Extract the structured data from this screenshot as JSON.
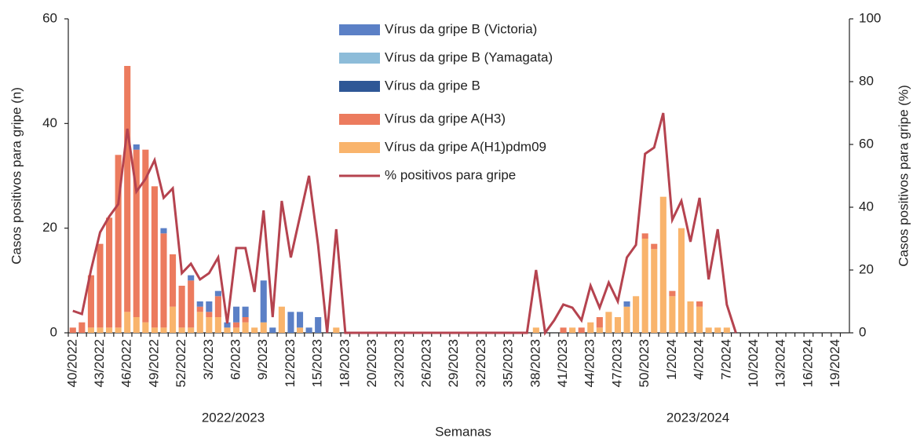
{
  "chart_data": {
    "type": "bar",
    "stacked": true,
    "y_label": "Casos positivos para gripe (n)",
    "y2_label": "Casos positivos para gripe (%)",
    "x_label": "Semanas",
    "annotations": [
      "2022/2023",
      "2023/2024"
    ],
    "legend": "top",
    "categories": [
      "40/2022",
      null,
      null,
      "43/2022",
      null,
      null,
      "46/2022",
      null,
      null,
      "49/2022",
      null,
      null,
      "52/2022",
      null,
      null,
      "3/2023",
      null,
      null,
      "6/2023",
      null,
      null,
      "9/2023",
      null,
      null,
      "12/2023",
      null,
      null,
      "15/2023",
      null,
      null,
      "18/2023",
      null,
      null,
      "20/2023",
      null,
      null,
      "23/2023",
      null,
      null,
      "26/2023",
      null,
      null,
      "29/2023",
      null,
      null,
      "32/2023",
      null,
      null,
      "35/2023",
      null,
      null,
      "38/2023",
      null,
      null,
      "41/2023",
      null,
      null,
      "44/2023",
      null,
      null,
      "47/2023",
      null,
      null,
      "50/2023",
      null,
      null,
      "1/2024",
      null,
      null,
      "4/2024",
      null,
      null,
      "7/2024",
      null,
      null,
      "10/2024",
      null,
      null,
      "13/2024",
      null,
      null,
      "16/2024",
      null,
      null,
      "19/2024",
      null
    ],
    "ylim": [
      0,
      60
    ],
    "yticks": [
      0,
      20,
      40,
      60
    ],
    "y2lim": [
      0,
      100
    ],
    "y2ticks": [
      0,
      20,
      40,
      60,
      80,
      100
    ],
    "series": [
      {
        "name": "Vírus da gripe B (Victoria)",
        "color": "#5b80c6",
        "values": [
          0,
          0,
          0,
          0,
          0,
          0,
          0,
          1,
          0,
          0,
          1,
          0,
          0,
          1,
          1,
          2,
          1,
          1,
          3,
          2,
          0,
          8,
          1,
          0,
          4,
          3,
          1,
          3,
          0,
          0,
          0,
          0,
          0,
          0,
          0,
          0,
          0,
          0,
          0,
          0,
          0,
          0,
          0,
          0,
          0,
          0,
          0,
          0,
          0,
          0,
          0,
          0,
          0,
          0,
          0,
          0,
          0,
          0,
          0,
          0,
          0,
          1,
          0,
          0,
          0,
          0,
          0,
          0,
          0,
          0,
          0,
          0,
          0,
          0,
          0,
          0,
          0,
          0,
          0,
          0,
          0,
          0,
          0,
          0,
          0,
          0
        ]
      },
      {
        "name": "Vírus da gripe B (Yamagata)",
        "color": "#8dbcd9",
        "values": [
          0,
          0,
          0,
          0,
          0,
          0,
          0,
          0,
          0,
          0,
          0,
          0,
          0,
          0,
          0,
          0,
          0,
          0,
          0,
          0,
          0,
          0,
          0,
          0,
          0,
          0,
          0,
          0,
          0,
          0,
          0,
          0,
          0,
          0,
          0,
          0,
          0,
          0,
          0,
          0,
          0,
          0,
          0,
          0,
          0,
          0,
          0,
          0,
          0,
          0,
          0,
          0,
          0,
          0,
          0,
          0,
          0,
          0,
          0,
          0,
          0,
          0,
          0,
          0,
          0,
          0,
          0,
          0,
          0,
          0,
          0,
          0,
          0,
          0,
          0,
          0,
          0,
          0,
          0,
          0,
          0,
          0,
          0,
          0,
          0,
          0
        ]
      },
      {
        "name": "Vírus da gripe B",
        "color": "#2e5796",
        "values": [
          0,
          0,
          0,
          0,
          0,
          0,
          0,
          0,
          0,
          0,
          0,
          0,
          0,
          0,
          0,
          0,
          0,
          0,
          0,
          0,
          0,
          0,
          0,
          0,
          0,
          0,
          0,
          0,
          0,
          0,
          0,
          0,
          0,
          0,
          0,
          0,
          0,
          0,
          0,
          0,
          0,
          0,
          0,
          0,
          0,
          0,
          0,
          0,
          0,
          0,
          0,
          0,
          0,
          0,
          0,
          0,
          0,
          0,
          0,
          0,
          0,
          0,
          0,
          0,
          0,
          0,
          0,
          0,
          0,
          0,
          0,
          0,
          0,
          0,
          0,
          0,
          0,
          0,
          0,
          0,
          0,
          0,
          0,
          0,
          0,
          0
        ]
      },
      {
        "name": "Vírus da gripe A(H3)",
        "color": "#ec7b5e",
        "values": [
          1,
          2,
          10,
          16,
          21,
          33,
          47,
          32,
          33,
          27,
          18,
          10,
          8,
          9,
          1,
          1,
          4,
          0,
          1,
          1,
          0,
          0,
          0,
          0,
          0,
          0,
          0,
          0,
          0,
          0,
          0,
          0,
          0,
          0,
          0,
          0,
          0,
          0,
          0,
          0,
          0,
          0,
          0,
          0,
          0,
          0,
          0,
          0,
          0,
          0,
          0,
          0,
          0,
          0,
          1,
          0,
          1,
          0,
          2,
          0,
          0,
          0,
          0,
          1,
          1,
          0,
          1,
          0,
          0,
          1,
          0,
          0,
          0,
          0,
          0,
          0,
          0,
          0,
          0,
          0,
          0,
          0,
          0,
          0,
          0,
          0
        ]
      },
      {
        "name": "Vírus da gripe A(H1)pdm09",
        "color": "#f9b46c",
        "values": [
          0,
          0,
          1,
          1,
          1,
          1,
          4,
          3,
          2,
          1,
          1,
          5,
          1,
          1,
          4,
          3,
          3,
          1,
          1,
          2,
          1,
          2,
          0,
          5,
          0,
          1,
          0,
          0,
          0,
          1,
          0,
          0,
          0,
          0,
          0,
          0,
          0,
          0,
          0,
          0,
          0,
          0,
          0,
          0,
          0,
          0,
          0,
          0,
          0,
          0,
          0,
          1,
          0,
          0,
          0,
          1,
          0,
          2,
          1,
          4,
          3,
          5,
          7,
          18,
          16,
          26,
          7,
          20,
          6,
          5,
          1,
          1,
          1,
          0,
          0,
          0,
          0,
          0,
          0,
          0,
          0,
          0,
          0,
          0,
          0,
          0
        ]
      },
      {
        "name": "% positivos para gripe",
        "color": "#b5434f",
        "type": "line",
        "axis": "y2",
        "values": [
          7,
          6,
          20,
          32,
          37,
          41,
          65,
          45,
          49,
          55,
          43,
          46,
          19,
          22,
          17,
          19,
          24,
          3,
          27,
          27,
          13,
          39,
          5,
          42,
          24,
          37,
          50,
          28,
          0,
          33,
          0,
          0,
          0,
          0,
          0,
          0,
          0,
          0,
          0,
          0,
          0,
          0,
          0,
          0,
          0,
          0,
          0,
          0,
          0,
          0,
          0,
          20,
          0,
          4,
          9,
          8,
          4,
          15,
          8,
          16,
          10,
          24,
          28,
          57,
          59,
          70,
          36,
          42,
          29,
          43,
          17,
          33,
          9,
          0,
          null,
          null,
          null,
          null,
          null,
          null,
          null,
          null,
          null,
          null,
          null,
          null
        ]
      }
    ]
  }
}
